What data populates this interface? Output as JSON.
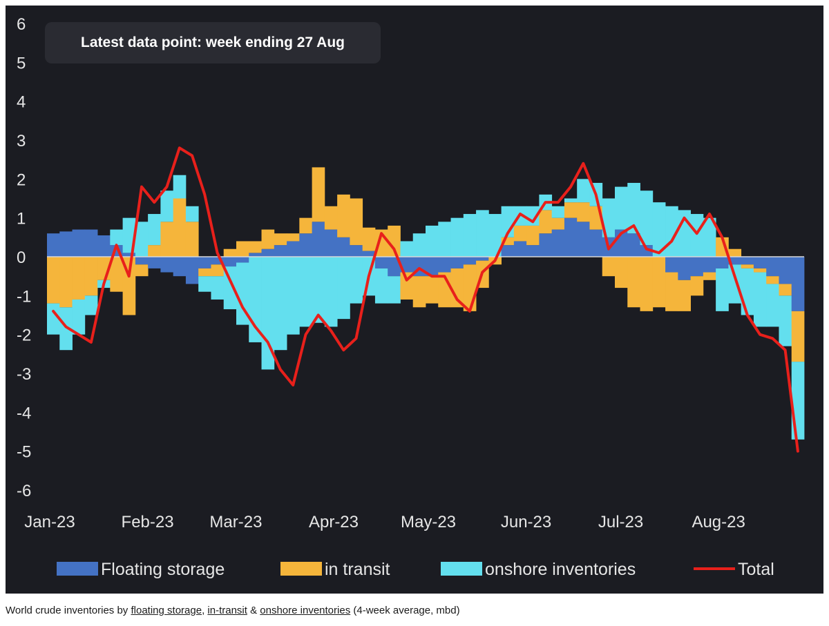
{
  "annotation": "Latest data point: week ending 27 Aug",
  "caption": {
    "prefix": "World crude inventories by ",
    "link1": "floating storage",
    "sep1": ", ",
    "link2": "in-transit",
    "sep2": " & ",
    "link3": "onshore inventories",
    "suffix": " (4-week average, mbd)"
  },
  "chart_data": {
    "type": "bar",
    "stacked": true,
    "ylim": [
      -6,
      6
    ],
    "yticks": [
      6,
      5,
      4,
      3,
      2,
      1,
      0,
      -1,
      -2,
      -3,
      -4,
      -5,
      -6
    ],
    "month_labels": [
      "Jan-23",
      "Feb-23",
      "Mar-23",
      "Apr-23",
      "May-23",
      "Jun-23",
      "Jul-23",
      "Aug-23"
    ],
    "legend_placement": "bottom",
    "grid": false,
    "colors": {
      "floating": "#4472c4",
      "transit": "#f5b53b",
      "onshore": "#63dfee",
      "total": "#e8201b",
      "zero_line": "#d8d8d8"
    },
    "series": [
      {
        "name": "Floating storage",
        "key": "floating",
        "kind": "bar"
      },
      {
        "name": "in transit",
        "key": "transit",
        "kind": "bar"
      },
      {
        "name": "onshore inventories",
        "key": "onshore",
        "kind": "bar"
      },
      {
        "name": "Total",
        "key": "total",
        "kind": "line"
      }
    ],
    "days": [
      1,
      5,
      9,
      13,
      17,
      21,
      25,
      29,
      33,
      37,
      41,
      45,
      49,
      53,
      57,
      61,
      65,
      69,
      73,
      77,
      81,
      85,
      89,
      93,
      97,
      101,
      105,
      109,
      113,
      117,
      121,
      125,
      129,
      133,
      137,
      141,
      145,
      149,
      153,
      157,
      161,
      165,
      169,
      173,
      177,
      181,
      185,
      189,
      193,
      197,
      201,
      205,
      209,
      213,
      217,
      221,
      225,
      229,
      233,
      237
    ],
    "floating": [
      0.6,
      0.65,
      0.7,
      0.7,
      0.55,
      0.3,
      0.1,
      -0.2,
      -0.3,
      -0.4,
      -0.5,
      -0.7,
      -0.3,
      -0.2,
      -0.25,
      -0.15,
      0.1,
      0.2,
      0.3,
      0.4,
      0.6,
      0.9,
      0.7,
      0.5,
      0.3,
      0.15,
      -0.3,
      -0.5,
      -0.4,
      -0.5,
      -0.5,
      -0.4,
      -0.3,
      -0.2,
      -0.1,
      0.0,
      0.3,
      0.4,
      0.3,
      0.6,
      0.7,
      1.0,
      0.9,
      0.7,
      0.5,
      0.7,
      0.6,
      0.3,
      0.0,
      -0.4,
      -0.6,
      -0.5,
      -0.4,
      -0.3,
      -0.2,
      -0.2,
      -0.3,
      -0.5,
      -0.7,
      -1.4
    ],
    "transit": [
      -1.2,
      -1.3,
      -1.1,
      -1.0,
      -0.6,
      -0.9,
      -1.5,
      -0.3,
      0.3,
      0.9,
      1.5,
      0.9,
      -0.2,
      -0.3,
      0.2,
      0.4,
      0.3,
      0.5,
      0.3,
      0.2,
      0.4,
      1.4,
      0.6,
      1.1,
      1.2,
      0.6,
      0.7,
      0.8,
      -0.7,
      -0.8,
      -0.7,
      -0.9,
      -1.0,
      -1.2,
      -0.7,
      -0.2,
      0.2,
      0.4,
      0.5,
      0.6,
      0.3,
      0.4,
      0.5,
      0.6,
      -0.5,
      -0.8,
      -1.3,
      -1.4,
      -1.3,
      -1.0,
      -0.8,
      -0.5,
      -0.2,
      0.5,
      0.2,
      -0.1,
      -0.1,
      -0.2,
      -0.3,
      -1.3
    ],
    "onshore": [
      -0.8,
      -1.1,
      -0.9,
      -0.5,
      -0.2,
      0.4,
      0.9,
      0.9,
      0.8,
      0.8,
      0.6,
      0.4,
      -0.4,
      -0.6,
      -1.1,
      -1.6,
      -2.2,
      -2.9,
      -2.4,
      -2.0,
      -1.8,
      -1.7,
      -1.8,
      -1.6,
      -1.2,
      -1.0,
      -0.9,
      -0.7,
      0.4,
      0.6,
      0.8,
      0.9,
      1.0,
      1.1,
      1.2,
      1.1,
      0.8,
      0.5,
      0.5,
      0.4,
      0.3,
      0.1,
      0.6,
      0.6,
      1.0,
      1.1,
      1.3,
      1.4,
      1.4,
      1.3,
      1.2,
      1.1,
      1.0,
      -1.1,
      -1.0,
      -1.2,
      -1.4,
      -1.1,
      -1.3,
      -2.0
    ],
    "total": [
      -1.4,
      -1.8,
      -2.0,
      -2.2,
      -0.7,
      0.3,
      -0.5,
      1.8,
      1.4,
      1.8,
      2.8,
      2.6,
      1.6,
      0.1,
      -0.6,
      -1.3,
      -1.8,
      -2.2,
      -2.9,
      -3.3,
      -2.0,
      -1.5,
      -1.9,
      -2.4,
      -2.1,
      -0.5,
      0.6,
      0.2,
      -0.6,
      -0.3,
      -0.5,
      -0.5,
      -1.1,
      -1.4,
      -0.4,
      -0.1,
      0.6,
      1.1,
      0.9,
      1.4,
      1.4,
      1.8,
      2.4,
      1.6,
      0.2,
      0.6,
      0.8,
      0.2,
      0.1,
      0.4,
      1.0,
      0.6,
      1.1,
      0.5,
      -0.5,
      -1.5,
      -2.0,
      -2.1,
      -2.4,
      -5.0
    ]
  }
}
